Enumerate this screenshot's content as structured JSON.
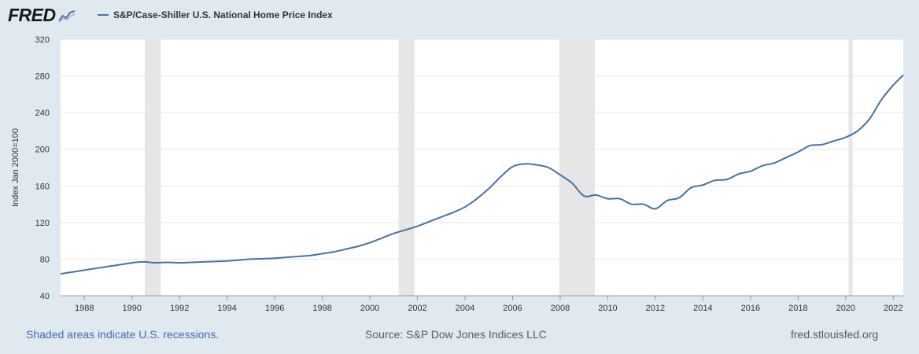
{
  "header": {
    "logo_text": "FRED",
    "legend_label": "S&P/Case-Shiller U.S. National Home Price Index",
    "series_color": "#4572a7"
  },
  "footer": {
    "recession_note": "Shaded areas indicate U.S. recessions.",
    "source": "Source: S&P Dow Jones Indices LLC",
    "site": "fred.stlouisfed.org"
  },
  "chart_data": {
    "type": "line",
    "title": "",
    "series_name": "S&P/Case-Shiller U.S. National Home Price Index",
    "ylabel": "Index Jan 2000=100",
    "xlabel": "",
    "x_range": [
      1987.0,
      2022.42
    ],
    "ylim": [
      40,
      320
    ],
    "y_ticks": [
      40,
      80,
      120,
      160,
      200,
      240,
      280,
      320
    ],
    "x_ticks": [
      1988,
      1990,
      1992,
      1994,
      1996,
      1998,
      2000,
      2002,
      2004,
      2006,
      2008,
      2010,
      2012,
      2014,
      2016,
      2018,
      2020,
      2022
    ],
    "grid": true,
    "recessions": [
      [
        1990.54,
        1991.21
      ],
      [
        2001.21,
        2001.88
      ],
      [
        2007.96,
        2009.46
      ],
      [
        2020.12,
        2020.29
      ]
    ],
    "recession_color": "#e6e6e6",
    "points": [
      [
        1987.0,
        64
      ],
      [
        1987.5,
        66
      ],
      [
        1988.0,
        68
      ],
      [
        1988.5,
        70
      ],
      [
        1989.0,
        72
      ],
      [
        1989.5,
        74
      ],
      [
        1990.0,
        76
      ],
      [
        1990.5,
        77
      ],
      [
        1991.0,
        76
      ],
      [
        1991.5,
        76.5
      ],
      [
        1992.0,
        76
      ],
      [
        1992.5,
        76.5
      ],
      [
        1993.0,
        77
      ],
      [
        1993.5,
        77.5
      ],
      [
        1994.0,
        78
      ],
      [
        1994.5,
        79
      ],
      [
        1995.0,
        80
      ],
      [
        1995.5,
        80.5
      ],
      [
        1996.0,
        81
      ],
      [
        1996.5,
        82
      ],
      [
        1997.0,
        83
      ],
      [
        1997.5,
        84
      ],
      [
        1998.0,
        86
      ],
      [
        1998.5,
        88
      ],
      [
        1999.0,
        91
      ],
      [
        1999.5,
        94
      ],
      [
        2000.0,
        98
      ],
      [
        2000.5,
        103
      ],
      [
        2001.0,
        108
      ],
      [
        2001.5,
        112
      ],
      [
        2002.0,
        116
      ],
      [
        2002.5,
        121
      ],
      [
        2003.0,
        126
      ],
      [
        2003.5,
        131
      ],
      [
        2004.0,
        137
      ],
      [
        2004.5,
        146
      ],
      [
        2005.0,
        157
      ],
      [
        2005.5,
        170
      ],
      [
        2006.0,
        181
      ],
      [
        2006.5,
        184
      ],
      [
        2007.0,
        183
      ],
      [
        2007.5,
        180
      ],
      [
        2008.0,
        172
      ],
      [
        2008.5,
        163
      ],
      [
        2009.0,
        149
      ],
      [
        2009.5,
        150
      ],
      [
        2010.0,
        146
      ],
      [
        2010.5,
        146
      ],
      [
        2011.0,
        140
      ],
      [
        2011.5,
        140
      ],
      [
        2012.0,
        135
      ],
      [
        2012.5,
        144
      ],
      [
        2013.0,
        147
      ],
      [
        2013.5,
        158
      ],
      [
        2014.0,
        161
      ],
      [
        2014.5,
        166
      ],
      [
        2015.0,
        167
      ],
      [
        2015.5,
        173
      ],
      [
        2016.0,
        176
      ],
      [
        2016.5,
        182
      ],
      [
        2017.0,
        185
      ],
      [
        2017.5,
        191
      ],
      [
        2018.0,
        197
      ],
      [
        2018.5,
        204
      ],
      [
        2019.0,
        205
      ],
      [
        2019.5,
        209
      ],
      [
        2020.0,
        213
      ],
      [
        2020.5,
        220
      ],
      [
        2021.0,
        233
      ],
      [
        2021.5,
        254
      ],
      [
        2022.0,
        270
      ],
      [
        2022.42,
        281
      ]
    ]
  }
}
